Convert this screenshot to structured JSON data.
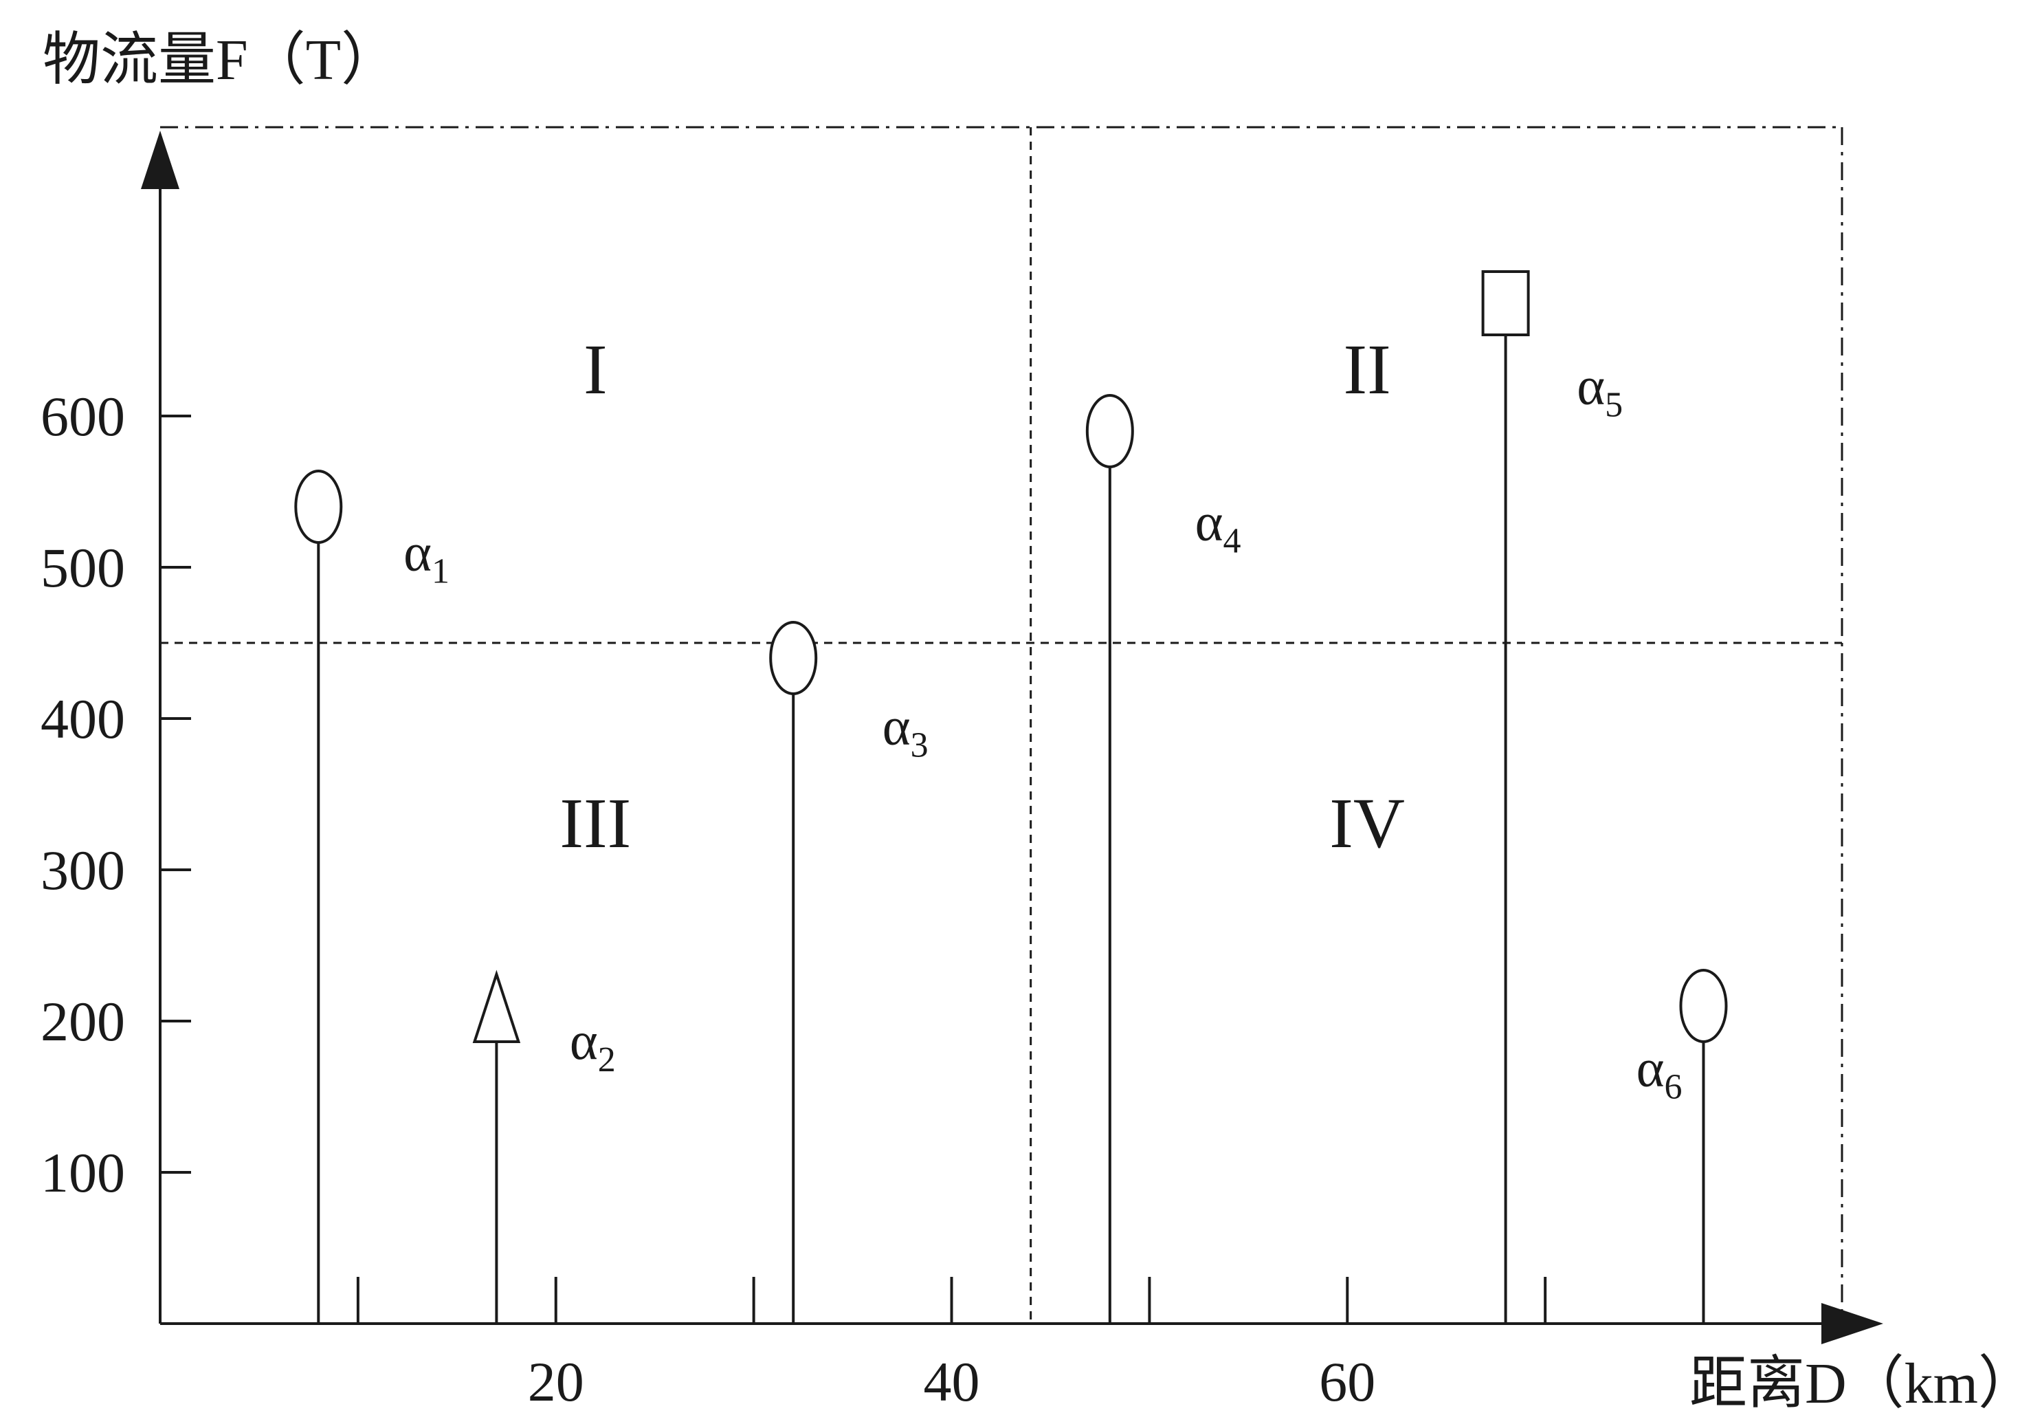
{
  "chart_data": {
    "type": "scatter",
    "title": "",
    "xlabel": "距离D（km）",
    "ylabel": "物流量F（T）",
    "x_ticks": [
      20,
      40,
      60
    ],
    "y_ticks": [
      100,
      200,
      300,
      400,
      500,
      600
    ],
    "xlim": [
      0,
      85
    ],
    "ylim": [
      0,
      780
    ],
    "divider_x": 44,
    "divider_y": 450,
    "regions": [
      {
        "id": "region-1",
        "label": "I",
        "x": 22,
        "y": 615
      },
      {
        "id": "region-2",
        "label": "II",
        "x": 61,
        "y": 615
      },
      {
        "id": "region-3",
        "label": "III",
        "x": 22,
        "y": 315
      },
      {
        "id": "region-4",
        "label": "IV",
        "x": 61,
        "y": 315
      }
    ],
    "points": [
      {
        "id": "alpha-1",
        "letter": "α",
        "sub": "1",
        "x": 8,
        "y": 520,
        "marker": "circle",
        "lx": 12.3,
        "ly": 498
      },
      {
        "id": "alpha-2",
        "letter": "α",
        "sub": "2",
        "x": 17,
        "y": 200,
        "marker": "triangle",
        "lx": 20.7,
        "ly": 175
      },
      {
        "id": "alpha-3",
        "letter": "α",
        "sub": "3",
        "x": 32,
        "y": 420,
        "marker": "circle",
        "lx": 36.5,
        "ly": 383
      },
      {
        "id": "alpha-4",
        "letter": "α",
        "sub": "4",
        "x": 48,
        "y": 570,
        "marker": "circle",
        "lx": 52.3,
        "ly": 518
      },
      {
        "id": "alpha-5",
        "letter": "α",
        "sub": "5",
        "x": 68,
        "y": 650,
        "marker": "square",
        "lx": 71.6,
        "ly": 608
      },
      {
        "id": "alpha-6",
        "letter": "α",
        "sub": "6",
        "x": 78,
        "y": 190,
        "marker": "circle",
        "lx": 74.6,
        "ly": 157
      }
    ],
    "legend": "none",
    "grid": false
  }
}
